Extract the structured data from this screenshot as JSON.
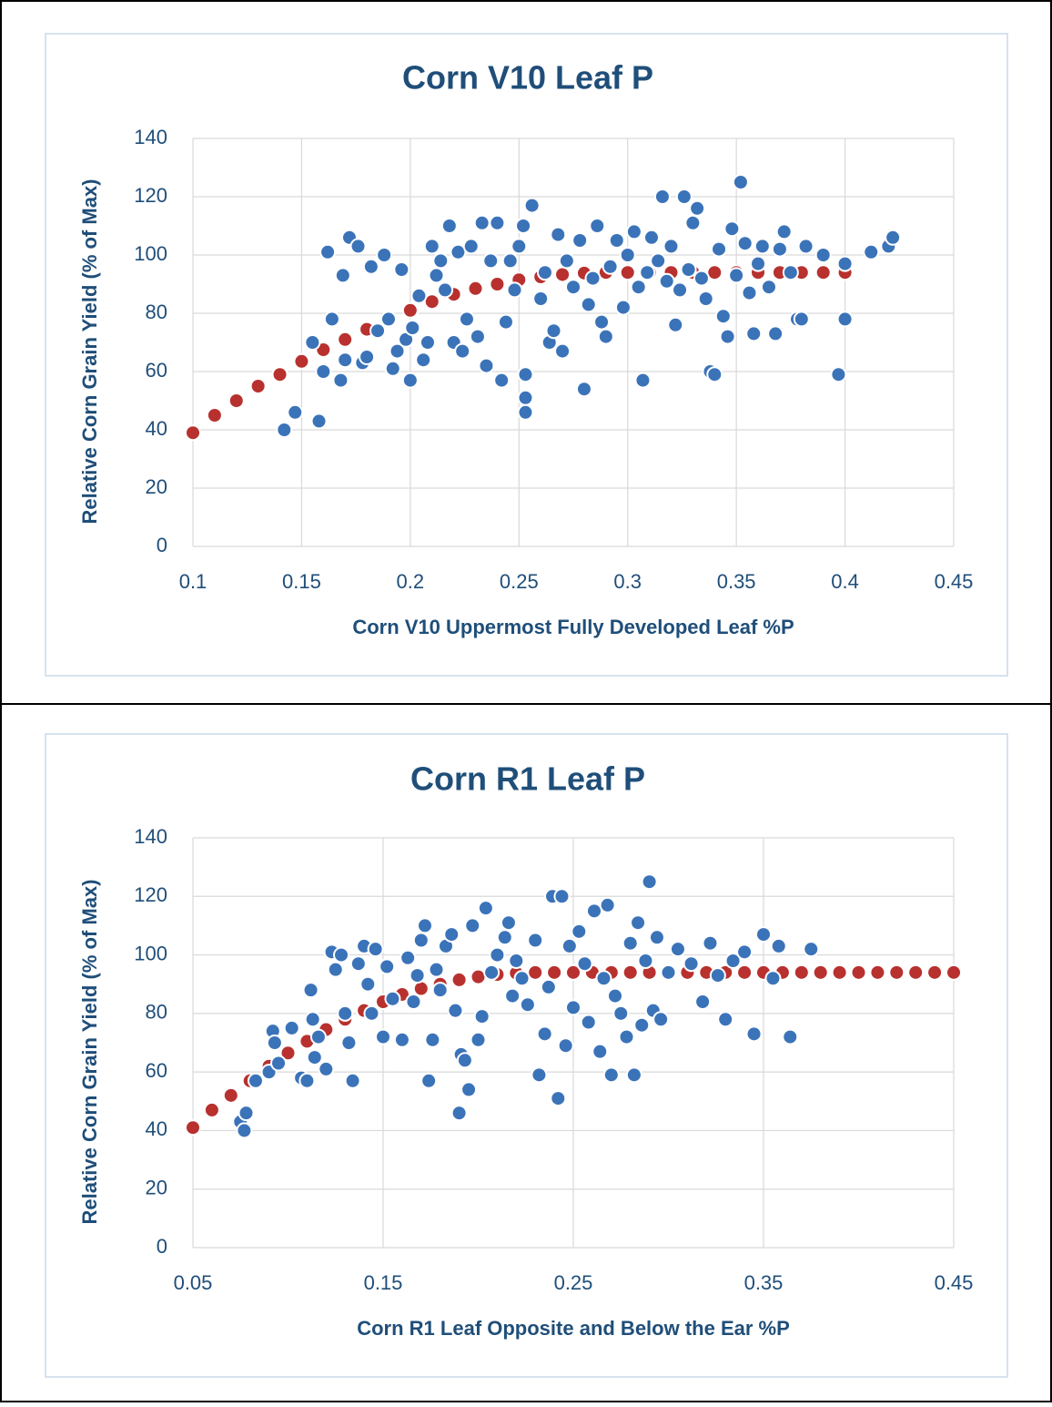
{
  "chart_data": [
    {
      "type": "scatter",
      "title": "Corn V10 Leaf P",
      "x_label": "Corn V10 Uppermost Fully Developed Leaf %P",
      "y_label": "Relative Corn Grain Yield (% of Max)",
      "xlim": [
        0.1,
        0.45
      ],
      "ylim": [
        0,
        140
      ],
      "xticks": [
        0.1,
        0.15,
        0.2,
        0.25,
        0.3,
        0.35,
        0.4,
        0.45
      ],
      "yticks": [
        0,
        20,
        40,
        60,
        80,
        100,
        120,
        140
      ],
      "grid": true,
      "series": [
        {
          "color": "#b8312f",
          "x": [
            0.1,
            0.11,
            0.12,
            0.13,
            0.14,
            0.15,
            0.16,
            0.17,
            0.18,
            0.19,
            0.2,
            0.21,
            0.22,
            0.23,
            0.24,
            0.25,
            0.26,
            0.27,
            0.28,
            0.29,
            0.3,
            0.31,
            0.32,
            0.33,
            0.34,
            0.35,
            0.36,
            0.37,
            0.38,
            0.39,
            0.4
          ],
          "values": [
            39,
            45,
            50,
            55,
            59,
            63.5,
            67.5,
            71,
            74.5,
            78,
            81,
            84,
            86.5,
            88.5,
            90,
            91.5,
            92.5,
            93.3,
            93.8,
            94,
            94,
            94,
            94,
            94,
            94,
            94,
            94,
            94,
            94,
            94,
            94
          ]
        },
        {
          "color": "#3b73b9",
          "x": [
            0.142,
            0.147,
            0.158,
            0.155,
            0.16,
            0.162,
            0.164,
            0.168,
            0.17,
            0.169,
            0.172,
            0.176,
            0.178,
            0.18,
            0.182,
            0.185,
            0.188,
            0.19,
            0.192,
            0.194,
            0.196,
            0.198,
            0.2,
            0.201,
            0.204,
            0.206,
            0.208,
            0.21,
            0.212,
            0.214,
            0.216,
            0.218,
            0.22,
            0.222,
            0.224,
            0.226,
            0.228,
            0.231,
            0.233,
            0.235,
            0.237,
            0.24,
            0.242,
            0.244,
            0.246,
            0.248,
            0.25,
            0.252,
            0.253,
            0.253,
            0.253,
            0.256,
            0.26,
            0.262,
            0.264,
            0.266,
            0.268,
            0.27,
            0.272,
            0.275,
            0.278,
            0.28,
            0.282,
            0.284,
            0.286,
            0.288,
            0.29,
            0.292,
            0.295,
            0.298,
            0.3,
            0.303,
            0.305,
            0.307,
            0.309,
            0.311,
            0.314,
            0.316,
            0.318,
            0.32,
            0.322,
            0.324,
            0.326,
            0.328,
            0.33,
            0.332,
            0.334,
            0.336,
            0.338,
            0.34,
            0.342,
            0.344,
            0.346,
            0.348,
            0.35,
            0.352,
            0.354,
            0.356,
            0.358,
            0.36,
            0.362,
            0.365,
            0.368,
            0.37,
            0.372,
            0.375,
            0.378,
            0.38,
            0.382,
            0.39,
            0.397,
            0.4,
            0.4,
            0.412,
            0.42,
            0.422
          ],
          "values": [
            40,
            46,
            43,
            70,
            60,
            101,
            78,
            57,
            64,
            93,
            106,
            103,
            63,
            65,
            96,
            74,
            100,
            78,
            61,
            67,
            95,
            71,
            57,
            75,
            86,
            64,
            70,
            103,
            93,
            98,
            88,
            110,
            70,
            101,
            67,
            78,
            103,
            72,
            111,
            62,
            98,
            111,
            57,
            77,
            98,
            88,
            103,
            110,
            59,
            51,
            46,
            117,
            85,
            94,
            70,
            74,
            107,
            67,
            98,
            89,
            105,
            54,
            83,
            92,
            110,
            77,
            72,
            96,
            105,
            82,
            100,
            108,
            89,
            57,
            94,
            106,
            98,
            120,
            91,
            103,
            76,
            88,
            120,
            95,
            111,
            116,
            92,
            85,
            60,
            59,
            102,
            79,
            72,
            109,
            93,
            125,
            104,
            87,
            73,
            97,
            103,
            89,
            73,
            102,
            108,
            94,
            78,
            78,
            103,
            100,
            59,
            78,
            97,
            101,
            103,
            106
          ]
        }
      ]
    },
    {
      "type": "scatter",
      "title": "Corn R1 Leaf P",
      "x_label": "Corn R1 Leaf Opposite and Below the Ear %P",
      "y_label": "Relative Corn Grain Yield (% of Max)",
      "xlim": [
        0.05,
        0.45
      ],
      "ylim": [
        0,
        140
      ],
      "xticks": [
        0.05,
        0.15,
        0.25,
        0.35,
        0.45
      ],
      "yticks": [
        0,
        20,
        40,
        60,
        80,
        100,
        120,
        140
      ],
      "grid": true,
      "series": [
        {
          "color": "#b8312f",
          "x": [
            0.05,
            0.06,
            0.07,
            0.08,
            0.09,
            0.1,
            0.11,
            0.12,
            0.13,
            0.14,
            0.15,
            0.16,
            0.17,
            0.18,
            0.19,
            0.2,
            0.21,
            0.22,
            0.23,
            0.24,
            0.25,
            0.26,
            0.27,
            0.28,
            0.29,
            0.3,
            0.31,
            0.32,
            0.33,
            0.34,
            0.35,
            0.36,
            0.37,
            0.38,
            0.39,
            0.4,
            0.41,
            0.42,
            0.43,
            0.44,
            0.45
          ],
          "values": [
            41,
            47,
            52,
            57,
            62,
            66.5,
            70.5,
            74.5,
            78,
            81,
            84,
            86.5,
            88.5,
            90,
            91.5,
            92.5,
            93.3,
            93.8,
            94,
            94,
            94,
            94,
            94,
            94,
            94,
            94,
            94,
            94,
            94,
            94,
            94,
            94,
            94,
            94,
            94,
            94,
            94,
            94,
            94,
            94,
            94
          ]
        },
        {
          "color": "#3b73b9",
          "x": [
            0.075,
            0.077,
            0.078,
            0.083,
            0.09,
            0.092,
            0.093,
            0.095,
            0.102,
            0.107,
            0.11,
            0.112,
            0.113,
            0.114,
            0.116,
            0.12,
            0.123,
            0.125,
            0.128,
            0.13,
            0.132,
            0.134,
            0.137,
            0.14,
            0.142,
            0.144,
            0.146,
            0.15,
            0.152,
            0.155,
            0.16,
            0.163,
            0.166,
            0.168,
            0.17,
            0.172,
            0.174,
            0.176,
            0.178,
            0.18,
            0.183,
            0.186,
            0.188,
            0.19,
            0.191,
            0.193,
            0.195,
            0.197,
            0.2,
            0.202,
            0.204,
            0.207,
            0.21,
            0.214,
            0.216,
            0.218,
            0.22,
            0.223,
            0.226,
            0.23,
            0.232,
            0.235,
            0.237,
            0.239,
            0.242,
            0.244,
            0.246,
            0.248,
            0.25,
            0.253,
            0.256,
            0.258,
            0.261,
            0.264,
            0.266,
            0.268,
            0.27,
            0.272,
            0.275,
            0.278,
            0.28,
            0.282,
            0.284,
            0.286,
            0.288,
            0.29,
            0.292,
            0.294,
            0.296,
            0.3,
            0.305,
            0.312,
            0.318,
            0.322,
            0.326,
            0.33,
            0.334,
            0.34,
            0.345,
            0.35,
            0.355,
            0.358,
            0.364,
            0.375
          ],
          "values": [
            43,
            40,
            46,
            57,
            60,
            74,
            70,
            63,
            75,
            58,
            57,
            88,
            78,
            65,
            72,
            61,
            101,
            95,
            100,
            80,
            70,
            57,
            97,
            103,
            90,
            80,
            102,
            72,
            96,
            85,
            71,
            99,
            84,
            93,
            105,
            110,
            57,
            71,
            95,
            88,
            103,
            107,
            81,
            46,
            66,
            64,
            54,
            110,
            71,
            79,
            116,
            94,
            100,
            106,
            111,
            86,
            98,
            92,
            83,
            105,
            59,
            73,
            89,
            120,
            51,
            120,
            69,
            103,
            82,
            108,
            97,
            77,
            115,
            67,
            92,
            117,
            59,
            86,
            80,
            72,
            104,
            59,
            111,
            76,
            98,
            125,
            81,
            106,
            78,
            94,
            102,
            97,
            84,
            104,
            93,
            78,
            98,
            101,
            73,
            107,
            92,
            103,
            72,
            102
          ]
        }
      ]
    }
  ]
}
